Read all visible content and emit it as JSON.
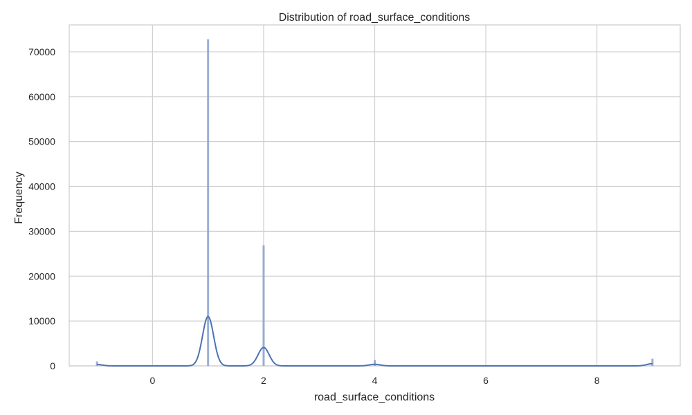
{
  "chart_data": {
    "type": "histogram",
    "title": "Distribution of road_surface_conditions",
    "xlabel": "road_surface_conditions",
    "ylabel": "Frequency",
    "xlim": [
      -1.5,
      9.5
    ],
    "ylim": [
      0,
      76000
    ],
    "x_ticks": [
      0,
      2,
      4,
      6,
      8
    ],
    "y_ticks": [
      0,
      10000,
      20000,
      30000,
      40000,
      50000,
      60000,
      70000
    ],
    "grid": true,
    "bars": [
      {
        "x": -1,
        "value": 1000
      },
      {
        "x": 1,
        "value": 72800
      },
      {
        "x": 2,
        "value": 26900
      },
      {
        "x": 4,
        "value": 1300
      },
      {
        "x": 9,
        "value": 1600
      }
    ],
    "kde_peaks": [
      {
        "x": -1,
        "value": 300
      },
      {
        "x": 1,
        "value": 11000
      },
      {
        "x": 2,
        "value": 4100
      },
      {
        "x": 4,
        "value": 350
      },
      {
        "x": 9,
        "value": 500
      }
    ],
    "colors": {
      "bar": "#8fa6cf",
      "kde": "#4c72b0",
      "grid": "#d0d0d0",
      "spine": "#cccccc"
    }
  }
}
